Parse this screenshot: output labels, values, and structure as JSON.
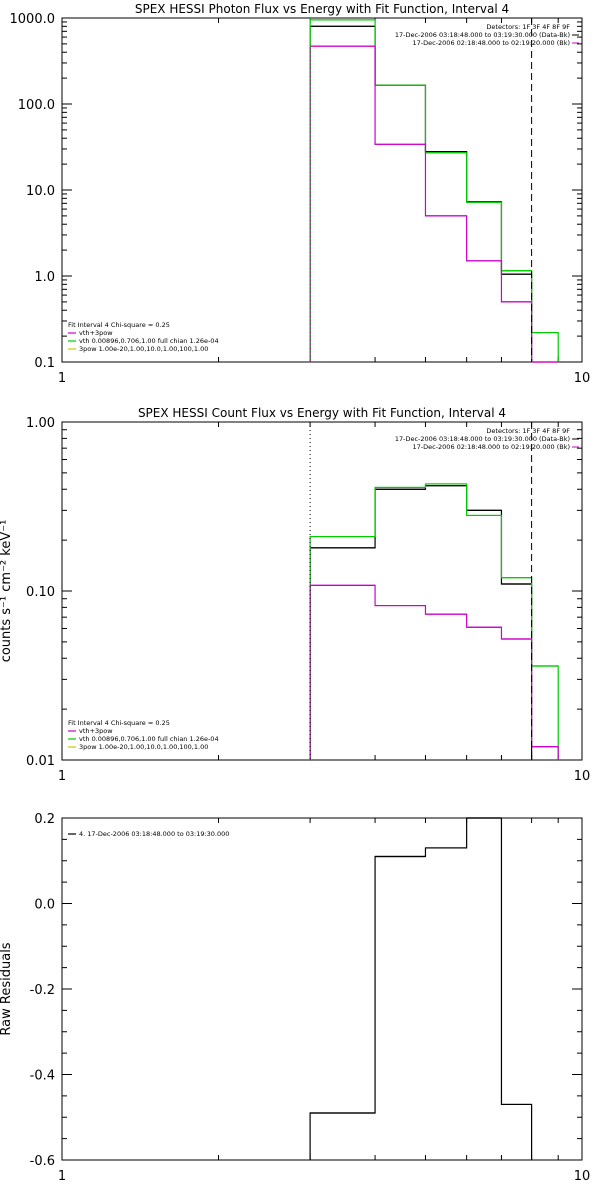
{
  "colors": {
    "data": "#000000",
    "model": "#00cc00",
    "component": "#cc00cc",
    "component2": "#cccc00",
    "background": "#ffffff"
  },
  "chart_data": [
    {
      "type": "line",
      "title": "SPEX HESSI Photon Flux vs Energy with Fit Function, Interval 4",
      "xscale": "log",
      "yscale": "log",
      "xlim": [
        1,
        10
      ],
      "ylim": [
        0.1,
        1000
      ],
      "xticks": [
        "1",
        "10"
      ],
      "yticks": [
        {
          "v": 1000,
          "label": "1000.0"
        },
        {
          "v": 100,
          "label": "100.0"
        },
        {
          "v": 10,
          "label": "10.0"
        },
        {
          "v": 1,
          "label": "1.0"
        },
        {
          "v": 0.1,
          "label": "0.1"
        }
      ],
      "xlabel": "",
      "ylabel": "",
      "edges": [
        3,
        4,
        5,
        6,
        7,
        8,
        9
      ],
      "series": [
        {
          "role": "data",
          "color": "#000000",
          "values": [
            800,
            165,
            28,
            7.3,
            1.05,
            null
          ]
        },
        {
          "role": "model",
          "color": "#00cc00",
          "values": [
            950,
            165,
            27,
            7.2,
            1.15,
            0.22
          ]
        },
        {
          "role": "component",
          "color": "#cc00cc",
          "values": [
            470,
            34,
            5.0,
            1.5,
            0.5,
            0.07
          ]
        }
      ],
      "vlines": [
        {
          "x": 3,
          "style": "dotted",
          "color": "#00cc00"
        },
        {
          "x": 8,
          "style": "dashed",
          "color": "#000000"
        }
      ],
      "info": [
        "Detectors: 1F 3F 4F 8F 9F",
        "17-Dec-2006 03:18:48.000 to 03:19:30.000 (Data-Bk)",
        "17-Dec-2006 02:18:48.000 to 02:19:20.000 (Bk)"
      ],
      "legend": {
        "header": "Fit Interval  4   Chi-square = 0.25",
        "entries": [
          {
            "color": "#cc00cc",
            "label": "vth+3pow"
          },
          {
            "color": "#00cc00",
            "label": "vth 0.00896,0.706,1.00  full chian 1.26e-04"
          },
          {
            "color": "#cccc00",
            "label": "3pow 1.00e-20,1.00,10.0,1.00,100,1.00"
          }
        ]
      }
    },
    {
      "type": "line",
      "title": "SPEX HESSI Count Flux vs Energy with Fit Function, Interval 4",
      "xscale": "log",
      "yscale": "log",
      "xlim": [
        1,
        10
      ],
      "ylim": [
        0.01,
        1.0
      ],
      "xticks": [
        "1",
        "10"
      ],
      "yticks": [
        {
          "v": 1.0,
          "label": "1.00"
        },
        {
          "v": 0.1,
          "label": "0.10"
        },
        {
          "v": 0.01,
          "label": "0.01"
        }
      ],
      "xlabel": "",
      "ylabel": "counts s⁻¹ cm⁻² keV⁻¹",
      "edges": [
        3,
        4,
        5,
        6,
        7,
        8,
        9
      ],
      "series": [
        {
          "role": "data",
          "color": "#000000",
          "values": [
            0.18,
            0.4,
            0.42,
            0.3,
            0.11,
            null
          ]
        },
        {
          "role": "model",
          "color": "#00cc00",
          "values": [
            0.21,
            0.41,
            0.43,
            0.28,
            0.12,
            0.036
          ]
        },
        {
          "role": "component",
          "color": "#cc00cc",
          "values": [
            0.108,
            0.082,
            0.073,
            0.061,
            0.052,
            0.012
          ]
        }
      ],
      "vlines": [
        {
          "x": 3,
          "style": "dotted",
          "color": "#000000"
        },
        {
          "x": 8,
          "style": "dashed",
          "color": "#000000"
        }
      ],
      "info": [
        "Detectors: 1F 3F 4F 8F 9F",
        "17-Dec-2006 03:18:48.000 to 03:19:30.000 (Data-Bk)",
        "17-Dec-2006 02:18:48.000 to 02:19:20.000 (Bk)"
      ],
      "legend": {
        "header": "Fit Interval  4   Chi-square = 0.25",
        "entries": [
          {
            "color": "#cc00cc",
            "label": "vth+3pow"
          },
          {
            "color": "#00cc00",
            "label": "vth 0.00896,0.706,1.00  full chian 1.26e-04"
          },
          {
            "color": "#cccc00",
            "label": "3pow 1.00e-20,1.00,10.0,1.00,100,1.00"
          }
        ]
      }
    },
    {
      "type": "line",
      "title": "",
      "xscale": "log",
      "yscale": "linear",
      "xlim": [
        1,
        10
      ],
      "ylim": [
        -0.6,
        0.2
      ],
      "xticks": [
        "1",
        "10"
      ],
      "yticks": [
        {
          "v": 0.2,
          "label": "0.2"
        },
        {
          "v": 0.0,
          "label": "0.0"
        },
        {
          "v": -0.2,
          "label": "-0.2"
        },
        {
          "v": -0.4,
          "label": "-0.4"
        },
        {
          "v": -0.6,
          "label": "-0.6"
        }
      ],
      "xlabel": "",
      "ylabel": "Raw Residuals",
      "edges": [
        3,
        4,
        5,
        6,
        7,
        8
      ],
      "series": [
        {
          "role": "residual",
          "color": "#000000",
          "values": [
            -0.49,
            0.11,
            0.13,
            0.2,
            -0.47
          ]
        }
      ],
      "vlines": [],
      "info": [],
      "legend": {
        "header": "",
        "entries": [
          {
            "color": "#000000",
            "label": "4. 17-Dec-2006 03:18:48.000 to 03:19:30.000"
          }
        ]
      }
    }
  ]
}
